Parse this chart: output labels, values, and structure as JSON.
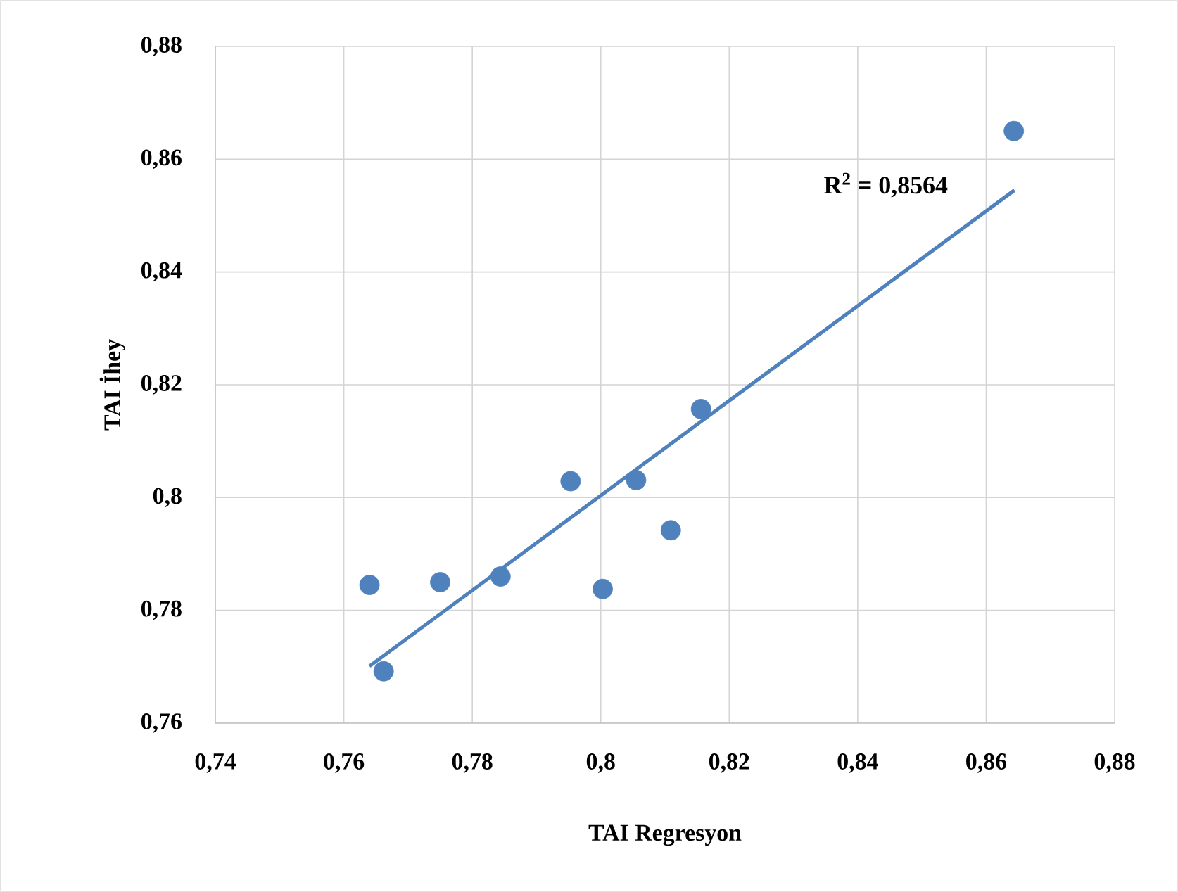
{
  "chart_data": {
    "type": "scatter",
    "xlabel": "TAI Regresyon",
    "ylabel": "TAI İhey",
    "xlim": [
      0.74,
      0.88
    ],
    "ylim": [
      0.76,
      0.88
    ],
    "xticks": [
      {
        "value": 0.74,
        "label": "0,74"
      },
      {
        "value": 0.76,
        "label": "0,76"
      },
      {
        "value": 0.78,
        "label": "0,78"
      },
      {
        "value": 0.8,
        "label": "0,8"
      },
      {
        "value": 0.82,
        "label": "0,82"
      },
      {
        "value": 0.84,
        "label": "0,84"
      },
      {
        "value": 0.86,
        "label": "0,86"
      },
      {
        "value": 0.88,
        "label": "0,88"
      }
    ],
    "yticks": [
      {
        "value": 0.76,
        "label": "0,76"
      },
      {
        "value": 0.78,
        "label": "0,78"
      },
      {
        "value": 0.8,
        "label": "0,8"
      },
      {
        "value": 0.82,
        "label": "0,82"
      },
      {
        "value": 0.84,
        "label": "0,84"
      },
      {
        "value": 0.86,
        "label": "0,86"
      },
      {
        "value": 0.88,
        "label": "0,88"
      }
    ],
    "grid": true,
    "series": [
      {
        "marker": "circle",
        "color": "#4f81bd",
        "x": [
          0.764,
          0.7662,
          0.775,
          0.7844,
          0.7953,
          0.8003,
          0.8055,
          0.8109,
          0.8156,
          0.8643
        ],
        "values": [
          0.7845,
          0.7692,
          0.785,
          0.786,
          0.8029,
          0.7838,
          0.8031,
          0.7942,
          0.8157,
          0.865
        ]
      },
      {
        "type": "line",
        "marker": "none",
        "color": "#4f81bd",
        "x": [
          0.764,
          0.8644
        ],
        "values": [
          0.7701,
          0.8545
        ]
      }
    ],
    "annotations": [
      "R$^{2}$ = 0,8564"
    ]
  }
}
